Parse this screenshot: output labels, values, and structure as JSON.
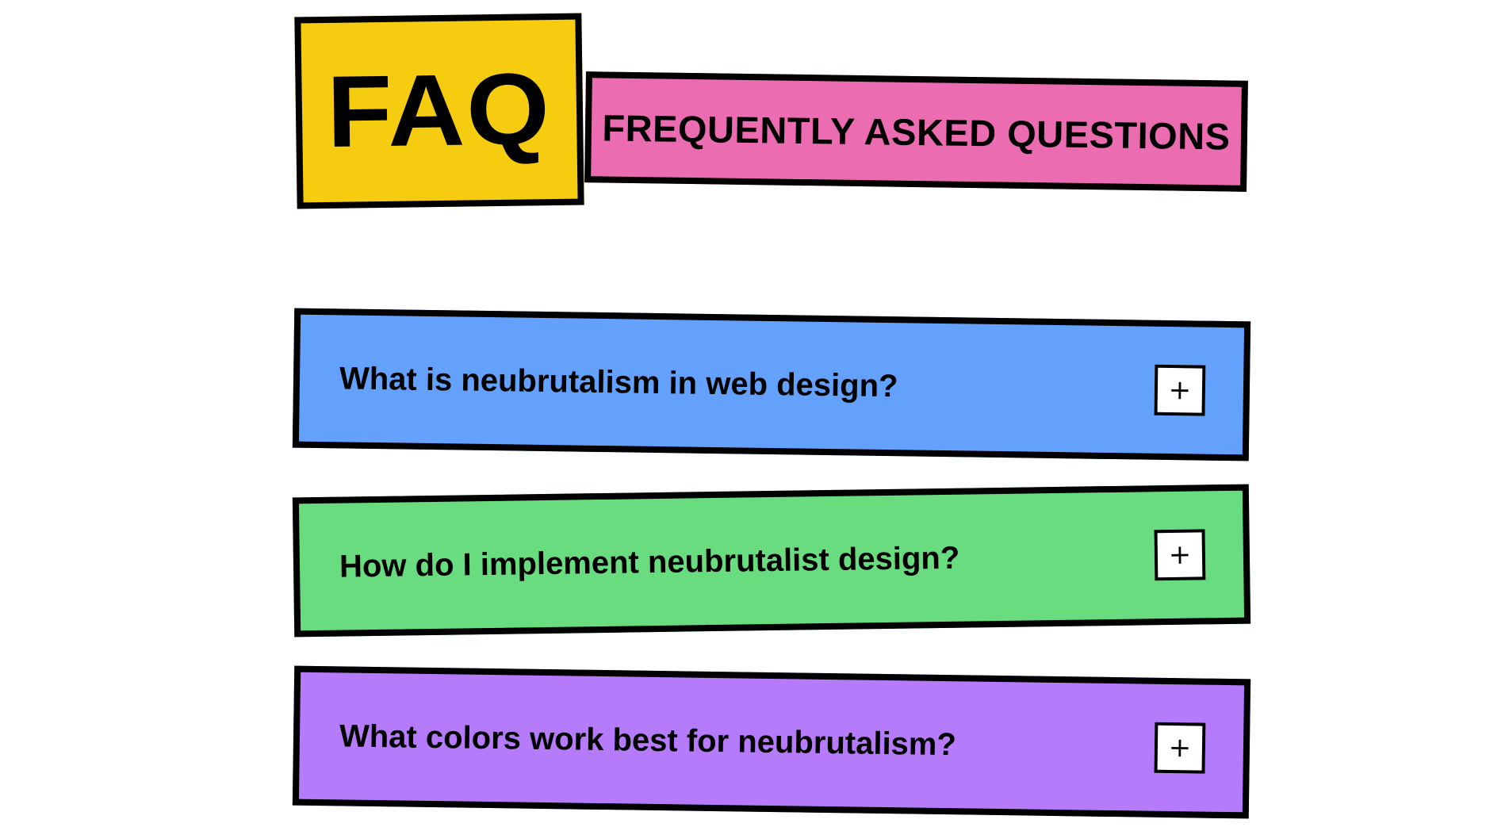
{
  "header": {
    "badge_text": "FAQ",
    "subtitle": "FREQUENTLY ASKED QUESTIONS"
  },
  "faq": {
    "items": [
      {
        "question": "What is neubrutalism in web design?",
        "toggle_symbol": "+",
        "color": "#63a1fc"
      },
      {
        "question": "How do I implement neubrutalist design?",
        "toggle_symbol": "+",
        "color": "#68dc7e"
      },
      {
        "question": "What colors work best for neubrutalism?",
        "toggle_symbol": "+",
        "color": "#b57bfb"
      }
    ]
  },
  "colors": {
    "badge": "#f6cc10",
    "subtitle_banner": "#ec6cb1",
    "border": "#000000"
  },
  "icons": {
    "toggle": "plus-icon"
  }
}
